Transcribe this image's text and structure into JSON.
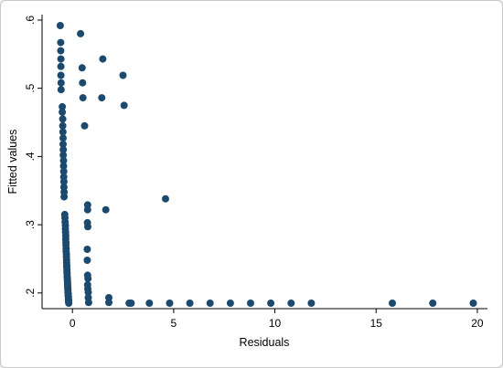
{
  "chart_data": {
    "type": "scatter",
    "title": "",
    "xlabel": "Residuals",
    "ylabel": "Fitted values",
    "xlim": [
      -1.5,
      20.5
    ],
    "ylim": [
      0.177,
      0.608
    ],
    "x_ticks": [
      0,
      5,
      10,
      15,
      20
    ],
    "x_tick_labels": [
      "0",
      "5",
      "10",
      "15",
      "20"
    ],
    "y_ticks": [
      0.2,
      0.3,
      0.4,
      0.5,
      0.6
    ],
    "y_tick_labels": [
      ".2",
      ".3",
      ".4",
      ".5",
      ".6"
    ],
    "grid": false,
    "legend": "none",
    "colors": {
      "marker": "#1b4a6e",
      "plot_background": "#ffffff",
      "frame": "#000000"
    },
    "points": [
      [
        -0.6,
        0.592
      ],
      [
        -0.58,
        0.567
      ],
      [
        -0.58,
        0.555
      ],
      [
        -0.57,
        0.543
      ],
      [
        -0.57,
        0.532
      ],
      [
        -0.57,
        0.519
      ],
      [
        -0.56,
        0.508
      ],
      [
        -0.56,
        0.498
      ],
      [
        -0.5,
        0.473
      ],
      [
        -0.5,
        0.465
      ],
      [
        -0.48,
        0.455
      ],
      [
        -0.48,
        0.445
      ],
      [
        -0.47,
        0.436
      ],
      [
        -0.46,
        0.427
      ],
      [
        -0.46,
        0.418
      ],
      [
        -0.45,
        0.41
      ],
      [
        -0.45,
        0.402
      ],
      [
        -0.44,
        0.394
      ],
      [
        -0.44,
        0.386
      ],
      [
        -0.43,
        0.378
      ],
      [
        -0.43,
        0.37
      ],
      [
        -0.42,
        0.363
      ],
      [
        -0.42,
        0.355
      ],
      [
        -0.41,
        0.348
      ],
      [
        -0.41,
        0.341
      ],
      [
        -0.38,
        0.315
      ],
      [
        -0.37,
        0.31
      ],
      [
        -0.36,
        0.304
      ],
      [
        -0.35,
        0.299
      ],
      [
        -0.35,
        0.294
      ],
      [
        -0.34,
        0.289
      ],
      [
        -0.33,
        0.284
      ],
      [
        -0.33,
        0.279
      ],
      [
        -0.32,
        0.274
      ],
      [
        -0.32,
        0.27
      ],
      [
        -0.31,
        0.265
      ],
      [
        -0.31,
        0.261
      ],
      [
        -0.3,
        0.257
      ],
      [
        -0.3,
        0.253
      ],
      [
        -0.29,
        0.249
      ],
      [
        -0.29,
        0.245
      ],
      [
        -0.28,
        0.241
      ],
      [
        -0.28,
        0.238
      ],
      [
        -0.27,
        0.234
      ],
      [
        -0.27,
        0.231
      ],
      [
        -0.26,
        0.228
      ],
      [
        -0.26,
        0.224
      ],
      [
        -0.25,
        0.221
      ],
      [
        -0.25,
        0.218
      ],
      [
        -0.24,
        0.215
      ],
      [
        -0.24,
        0.212
      ],
      [
        -0.23,
        0.209
      ],
      [
        -0.23,
        0.207
      ],
      [
        -0.22,
        0.204
      ],
      [
        -0.22,
        0.201
      ],
      [
        -0.21,
        0.199
      ],
      [
        -0.21,
        0.196
      ],
      [
        -0.2,
        0.194
      ],
      [
        -0.2,
        0.191
      ],
      [
        -0.19,
        0.189
      ],
      [
        -0.19,
        0.187
      ],
      [
        -0.18,
        0.185
      ],
      [
        0.4,
        0.58
      ],
      [
        0.48,
        0.53
      ],
      [
        0.5,
        0.508
      ],
      [
        0.52,
        0.486
      ],
      [
        0.6,
        0.445
      ],
      [
        1.5,
        0.543
      ],
      [
        1.45,
        0.486
      ],
      [
        2.5,
        0.519
      ],
      [
        2.55,
        0.475
      ],
      [
        4.6,
        0.338
      ],
      [
        1.65,
        0.322
      ],
      [
        0.75,
        0.329
      ],
      [
        0.75,
        0.322
      ],
      [
        0.74,
        0.303
      ],
      [
        0.76,
        0.297
      ],
      [
        0.73,
        0.264
      ],
      [
        0.73,
        0.248
      ],
      [
        0.75,
        0.226
      ],
      [
        0.77,
        0.221
      ],
      [
        0.75,
        0.212
      ],
      [
        0.76,
        0.206
      ],
      [
        0.78,
        0.201
      ],
      [
        0.78,
        0.193
      ],
      [
        0.8,
        0.186
      ],
      [
        1.8,
        0.193
      ],
      [
        1.8,
        0.186
      ],
      [
        2.8,
        0.185
      ],
      [
        2.9,
        0.185
      ],
      [
        3.8,
        0.185
      ],
      [
        4.8,
        0.185
      ],
      [
        5.8,
        0.185
      ],
      [
        6.8,
        0.185
      ],
      [
        7.8,
        0.185
      ],
      [
        8.8,
        0.185
      ],
      [
        9.8,
        0.185
      ],
      [
        10.8,
        0.185
      ],
      [
        11.8,
        0.185
      ],
      [
        15.8,
        0.185
      ],
      [
        17.8,
        0.185
      ],
      [
        19.8,
        0.185
      ]
    ]
  }
}
